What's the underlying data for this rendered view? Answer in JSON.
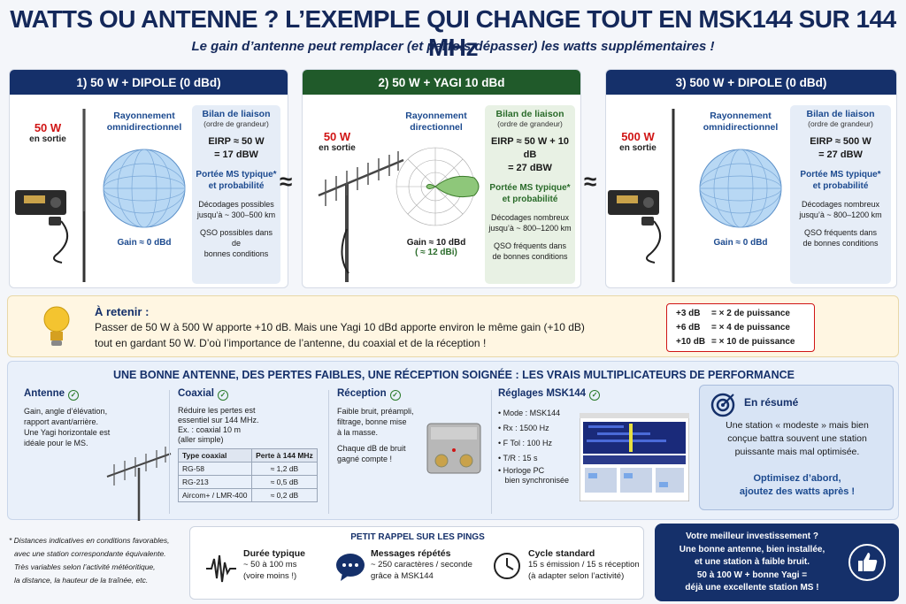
{
  "header": {
    "title": "WATTS OU ANTENNE ?  L’EXEMPLE QUI CHANGE TOUT EN MSK144 SUR 144 MHz",
    "subtitle": "Le gain d’antenne peut remplacer (et parfois dépasser) les watts supplémentaires !"
  },
  "approx_symbol": "≈",
  "cards": [
    {
      "title": "1) 50 W + DIPOLE (0 dBd)",
      "watts": "50 W",
      "watts_sub": "en sortie",
      "radiation": [
        "Rayonnement",
        "omnidirectionnel"
      ],
      "gain": "Gain ≈ 0 dBd",
      "bilan_title": "Bilan de liaison",
      "bilan_sub": "(ordre de grandeur)",
      "eirp1": "EIRP ≈ 50 W",
      "eirp2": "= 17 dBW",
      "portee1": "Portée MS typique*",
      "portee2": "et probabilité",
      "decod1": "Décodages possibles",
      "decod2": "jusqu’à ~ 300–500 km",
      "qso1": "QSO possibles dans de",
      "qso2": "bonnes conditions"
    },
    {
      "title": "2) 50 W + YAGI 10 dBd",
      "watts": "50 W",
      "watts_sub": "en sortie",
      "radiation": [
        "Rayonnement",
        "directionnel"
      ],
      "gain": "Gain ≈ 10 dBd",
      "gain_sub": "( ≈ 12 dBi)",
      "bilan_title": "Bilan de liaison",
      "bilan_sub": "(ordre de grandeur)",
      "eirp1": "EIRP ≈ 50 W + 10 dB",
      "eirp2": "= 27 dBW",
      "portee1": "Portée MS typique*",
      "portee2": "et probabilité",
      "decod1": "Décodages nombreux",
      "decod2": "jusqu’à ~ 800–1200 km",
      "qso1": "QSO fréquents dans",
      "qso2": "de bonnes conditions"
    },
    {
      "title": "3) 500 W + DIPOLE (0 dBd)",
      "watts": "500 W",
      "watts_sub": "en sortie",
      "radiation": [
        "Rayonnement",
        "omnidirectionnel"
      ],
      "gain": "Gain ≈ 0 dBd",
      "bilan_title": "Bilan de liaison",
      "bilan_sub": "(ordre de grandeur)",
      "eirp1": "EIRP ≈ 500 W",
      "eirp2": "= 27 dBW",
      "portee1": "Portée MS typique*",
      "portee2": "et probabilité",
      "decod1": "Décodages nombreux",
      "decod2": "jusqu’à ~ 800–1200 km",
      "qso1": "QSO fréquents dans",
      "qso2": "de bonnes conditions"
    }
  ],
  "retenir": {
    "title": "À retenir :",
    "line1": "Passer de 50 W  à 500 W apporte +10 dB. Mais une Yagi 10 dBd apporte environ le même gain (+10 dB)",
    "line2": "tout en gardant 50 W. D’où l’importance de l’antenne, du coaxial et de la réception !",
    "db": [
      {
        "k": "+3 dB",
        "v": "= × 2 de puissance"
      },
      {
        "k": "+6 dB",
        "v": "= × 4 de puissance"
      },
      {
        "k": "+10 dB",
        "v": "= × 10 de puissance"
      }
    ]
  },
  "perf": {
    "title": "UNE BONNE ANTENNE, DES PERTES FAIBLES, UNE RÉCEPTION SOIGNÉE : LES VRAIS MULTIPLICATEURS DE PERFORMANCE",
    "check": "✓",
    "antenne": {
      "title": "Antenne",
      "lines": [
        "Gain, angle d’élévation,",
        "rapport avant/arrière.",
        "Une Yagi horizontale est",
        "idéale pour le MS."
      ]
    },
    "coaxial": {
      "title": "Coaxial",
      "lines": [
        "Réduire les pertes est",
        "essentiel sur 144 MHz.",
        "Ex. : coaxial 10 m",
        "(aller simple)"
      ],
      "th1": "Type coaxial",
      "th2": "Perte à 144 MHz",
      "rows": [
        {
          "t": "RG-58",
          "v": "≈ 1,2 dB"
        },
        {
          "t": "RG-213",
          "v": "≈ 0,5 dB"
        },
        {
          "t": "Aircom+ / LMR-400",
          "v": "≈ 0,2 dB"
        }
      ]
    },
    "reception": {
      "title": "Réception",
      "lines": [
        "Faible bruit, préampli,",
        "filtrage, bonne mise",
        "à la masse.",
        "Chaque dB de bruit",
        "gagné compte !"
      ]
    },
    "reglages": {
      "title": "Réglages MSK144",
      "items": [
        "• Mode : MSK144",
        "• Rx : 1500 Hz",
        "• F Tol : 100 Hz",
        "• T/R : 15 s",
        "• Horloge PC",
        "   bien synchronisée"
      ]
    }
  },
  "resume": {
    "title": "En résumé",
    "l1": "Une station « modeste » mais bien",
    "l2": "conçue battra souvent une station",
    "l3": "puissante mais mal optimisée.",
    "o1": "Optimisez d’abord,",
    "o2": "ajoutez des watts après !"
  },
  "footnote": [
    "* Distances indicatives en conditions favorables,",
    "avec une station correspondante équivalente.",
    "Très variables selon l’activité météoritique,",
    "la distance, la hauteur de la traînée, etc."
  ],
  "pings": {
    "title": "PETIT RAPPEL SUR LES PINGS",
    "d_title": "Durée typique",
    "d1": "~ 50 à 100 ms",
    "d2": "(voire moins !)",
    "m_title": "Messages répétés",
    "m1": "~ 250 caractères / seconde",
    "m2": "grâce à MSK144",
    "c_title": "Cycle standard",
    "c1": "15 s émission / 15 s réception",
    "c2": "(à adapter selon l’activité)"
  },
  "invest": {
    "l1": "Votre meilleur investissement ?",
    "l2": "Une bonne antenne, bien installée,",
    "l3": "et une station à faible bruit.",
    "l4": "50 à 100 W + bonne Yagi =",
    "l5": "déjà une excellente station MS !"
  },
  "colors": {
    "navy": "#15306a",
    "green": "#205a2a",
    "red": "#d01515"
  }
}
